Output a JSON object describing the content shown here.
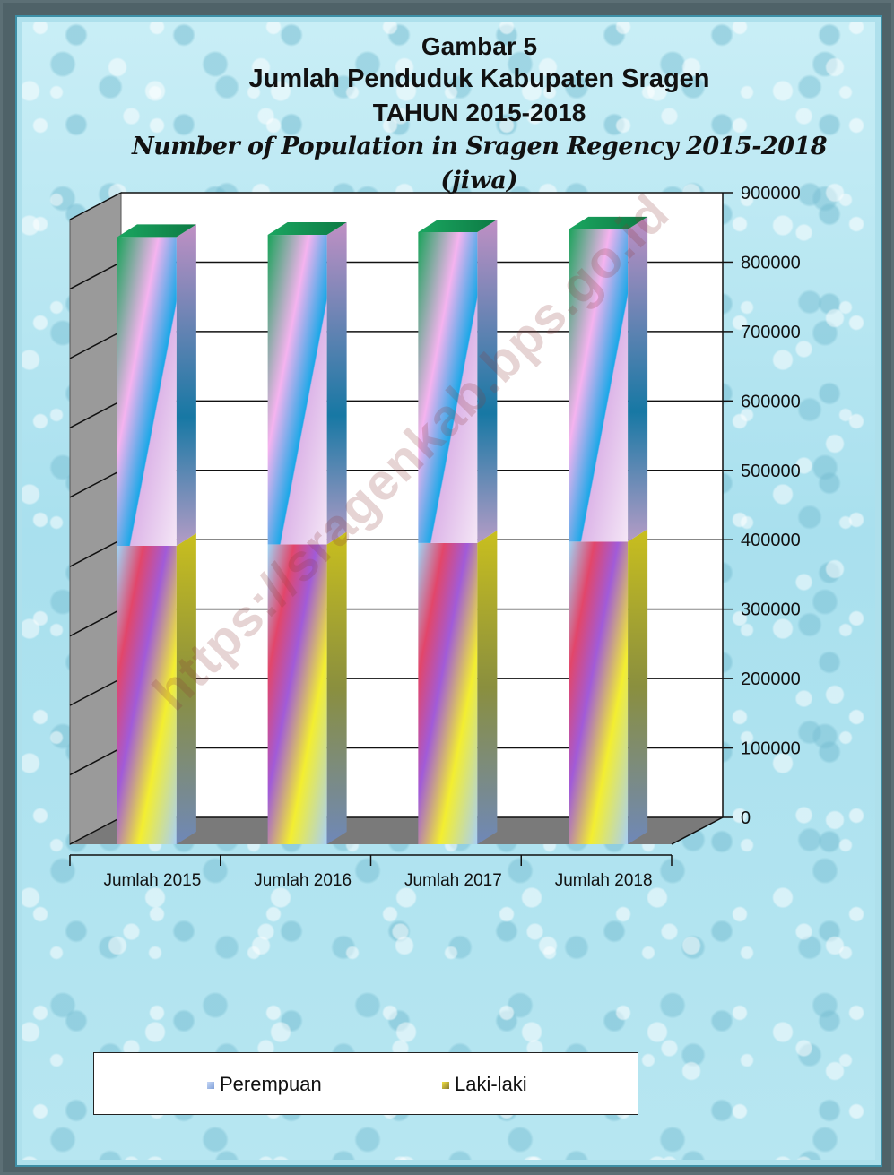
{
  "title_lines": [
    "Gambar 5",
    "Jumlah Penduduk Kabupaten Sragen",
    "TAHUN 2015-2018",
    "Number of Population in Sragen Regency 2015-2018",
    "(jiwa)"
  ],
  "watermark": "https://sragenkab.bps.go.id",
  "chart_data": {
    "type": "bar",
    "stacked": true,
    "three_d": true,
    "categories": [
      "Jumlah 2015",
      "Jumlah 2016",
      "Jumlah 2017",
      "Jumlah  2018"
    ],
    "series": [
      {
        "name": "Laki-laki",
        "values": [
          430000,
          432000,
          434000,
          436000
        ]
      },
      {
        "name": "Perempuan",
        "values": [
          445000,
          446000,
          448000,
          450000
        ]
      }
    ],
    "yticks": [
      "0",
      "100000",
      "200000",
      "300000",
      "400000",
      "500000",
      "600000",
      "700000",
      "800000",
      "900000"
    ],
    "ylim": [
      0,
      900000
    ],
    "y_axis_side": "right",
    "grid": true,
    "legend_position": "bottom"
  },
  "legend": {
    "items": [
      {
        "label": "Perempuan",
        "color": "#9fb8e8"
      },
      {
        "label": "Laki-laki",
        "color": "#d8c040"
      }
    ]
  }
}
